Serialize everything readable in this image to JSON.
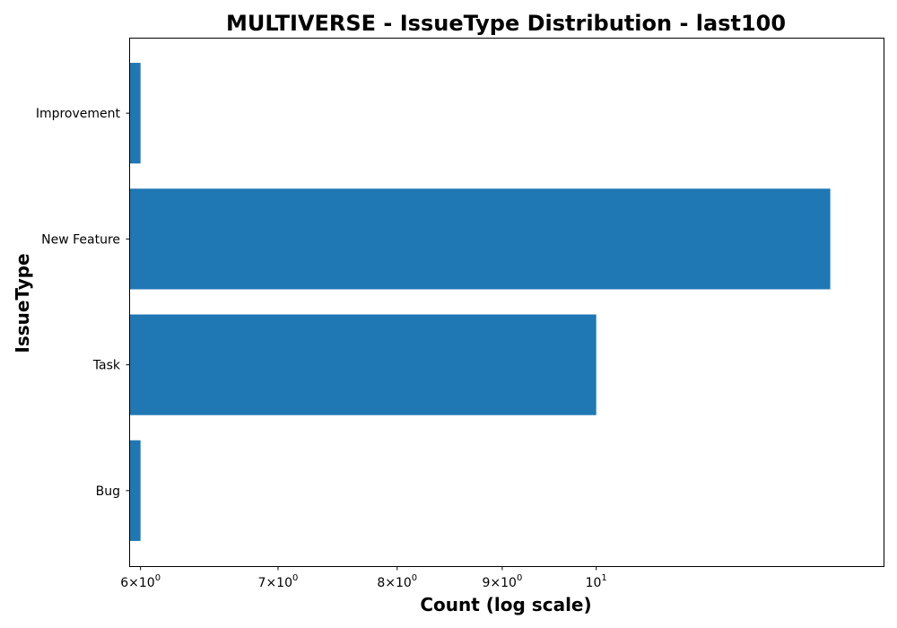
{
  "chart_data": {
    "type": "bar",
    "orientation": "horizontal",
    "title": "MULTIVERSE - IssueType Distribution - last100",
    "xlabel": "Count (log scale)",
    "ylabel": "IssueType",
    "x_scale": "log",
    "xlim": [
      5.93,
      13.8
    ],
    "categories": [
      "Bug",
      "Task",
      "New Feature",
      "Improvement"
    ],
    "values": [
      6,
      10,
      13,
      6
    ],
    "bar_color": "#1f77b4",
    "x_ticks": [
      {
        "value": 6,
        "mantissa": "6",
        "base": "10",
        "exponent": "0",
        "times": "×"
      },
      {
        "value": 7,
        "mantissa": "7",
        "base": "10",
        "exponent": "0",
        "times": "×"
      },
      {
        "value": 8,
        "mantissa": "8",
        "base": "10",
        "exponent": "0",
        "times": "×"
      },
      {
        "value": 9,
        "mantissa": "9",
        "base": "10",
        "exponent": "0",
        "times": "×"
      },
      {
        "value": 10,
        "mantissa": "",
        "base": "10",
        "exponent": "1",
        "times": ""
      }
    ],
    "grid": false,
    "legend": "none"
  }
}
